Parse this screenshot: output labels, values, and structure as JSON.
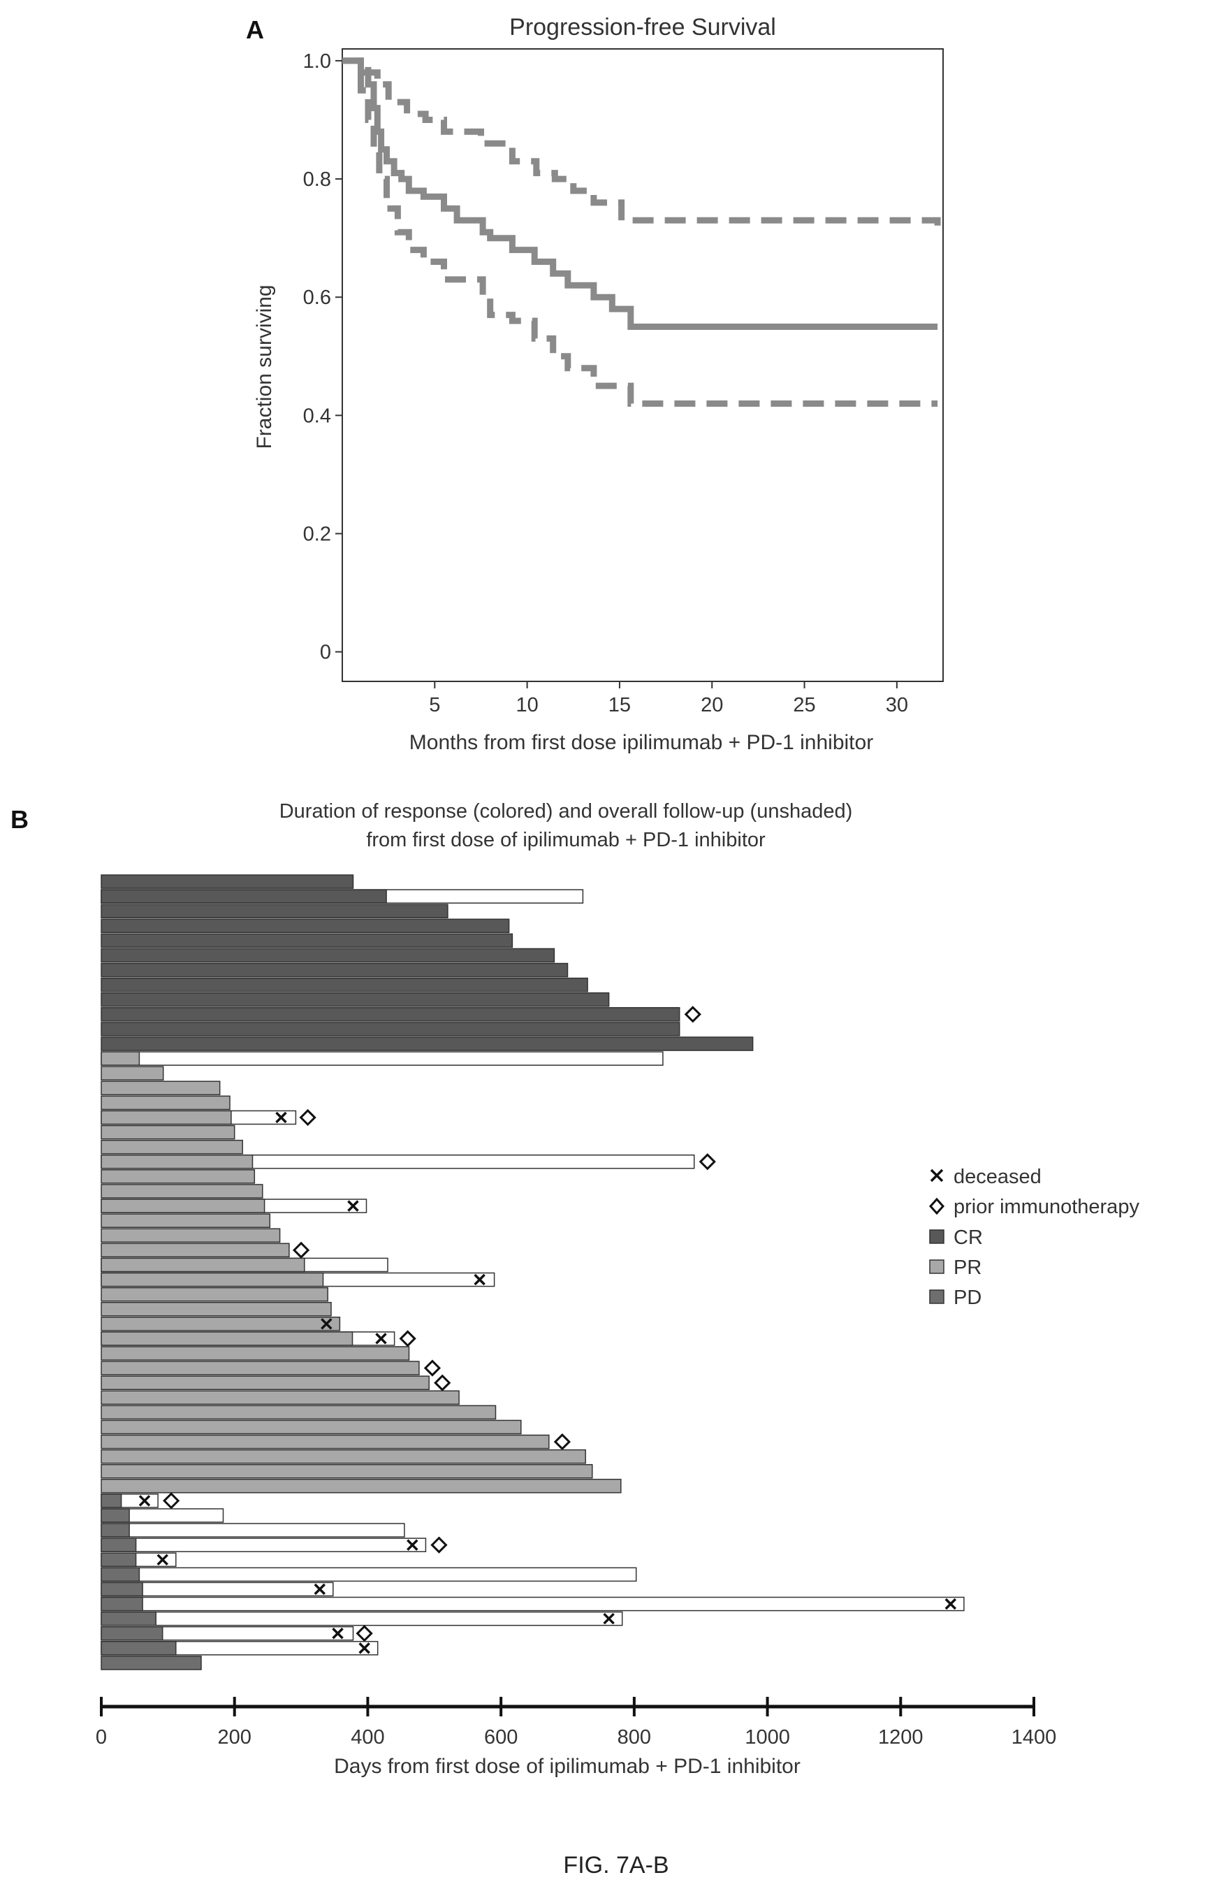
{
  "figure_caption": "FIG. 7A-B",
  "colors": {
    "survival_line": "#8a8a8a",
    "ci_line": "#8a8a8a",
    "CR": "#585858",
    "PR": "#a8a8a8",
    "PD": "#6e6e6e",
    "followup": "#ffffff",
    "outline": "#333333"
  },
  "chart_data": [
    {
      "panel": "A",
      "type": "line",
      "title": "Progression-free Survival",
      "xlabel": "Months from first dose ipilimumab + PD-1 inhibitor",
      "ylabel": "Fraction surviving",
      "xlim": [
        0,
        32.5
      ],
      "ylim": [
        -0.05,
        1.02
      ],
      "xticks": [
        5,
        10,
        15,
        20,
        25,
        30
      ],
      "xtick_labels": [
        "5",
        "10",
        "15",
        "20",
        "25",
        "30"
      ],
      "yticks": [
        0,
        0.2,
        0.4,
        0.6,
        0.8,
        1.0
      ],
      "ytick_labels": [
        "0",
        "0.2",
        "0.4",
        "0.6",
        "0.8",
        "1.0"
      ],
      "grid": false,
      "series": [
        {
          "style": "solid",
          "x": [
            0,
            1.0,
            1.4,
            1.7,
            1.9,
            2.1,
            2.4,
            2.8,
            3.2,
            3.6,
            4.4,
            5.5,
            6.2,
            7.6,
            8.0,
            9.2,
            10.4,
            11.4,
            12.2,
            13.6,
            14.6,
            15.6,
            32.2
          ],
          "y": [
            1.0,
            0.98,
            0.96,
            0.92,
            0.88,
            0.85,
            0.83,
            0.81,
            0.8,
            0.78,
            0.77,
            0.75,
            0.73,
            0.71,
            0.7,
            0.68,
            0.66,
            0.64,
            0.62,
            0.6,
            0.58,
            0.55,
            0.55
          ]
        },
        {
          "style": "dashed",
          "x": [
            0,
            1.0,
            1.4,
            1.9,
            2.5,
            3.5,
            4.5,
            5.5,
            7.5,
            9.2,
            10.5,
            11.5,
            12.5,
            13.6,
            15.1,
            32.2
          ],
          "y": [
            1.0,
            1.0,
            0.98,
            0.96,
            0.93,
            0.91,
            0.9,
            0.88,
            0.86,
            0.83,
            0.81,
            0.8,
            0.78,
            0.76,
            0.73,
            0.72
          ]
        },
        {
          "style": "dashed",
          "x": [
            0,
            1.0,
            1.4,
            1.7,
            2.0,
            2.4,
            3.0,
            3.6,
            4.4,
            5.5,
            7.6,
            8.0,
            9.2,
            10.4,
            11.4,
            12.2,
            13.6,
            15.6,
            32.2
          ],
          "y": [
            1.0,
            0.95,
            0.9,
            0.85,
            0.8,
            0.75,
            0.71,
            0.68,
            0.66,
            0.63,
            0.6,
            0.57,
            0.56,
            0.53,
            0.5,
            0.48,
            0.45,
            0.42,
            0.42
          ]
        }
      ]
    },
    {
      "panel": "B",
      "type": "bar",
      "orientation": "horizontal",
      "title": [
        "Duration of response (colored) and overall follow-up (unshaded)",
        "from first dose of ipilimumab + PD-1 inhibitor"
      ],
      "xlabel": "Days from first dose of ipilimumab + PD-1 inhibitor",
      "xlim": [
        0,
        1400
      ],
      "xticks": [
        0,
        200,
        400,
        600,
        800,
        1000,
        1200,
        1400
      ],
      "xtick_labels": [
        "0",
        "200",
        "400",
        "600",
        "800",
        "1000",
        "1200",
        "1400"
      ],
      "legend": {
        "position": "right",
        "items": [
          {
            "symbol": "x",
            "label": "deceased"
          },
          {
            "symbol": "diamond",
            "label": "prior immunotherapy"
          },
          {
            "symbol": "CR",
            "label": "CR"
          },
          {
            "symbol": "PR",
            "label": "PR"
          },
          {
            "symbol": "PD",
            "label": "PD"
          }
        ]
      },
      "patients": [
        {
          "group": "CR",
          "response": 378,
          "followup": 378
        },
        {
          "group": "CR",
          "response": 428,
          "followup": 723
        },
        {
          "group": "CR",
          "response": 520,
          "followup": 520
        },
        {
          "group": "CR",
          "response": 612,
          "followup": 612
        },
        {
          "group": "CR",
          "response": 617,
          "followup": 617
        },
        {
          "group": "CR",
          "response": 680,
          "followup": 680
        },
        {
          "group": "CR",
          "response": 700,
          "followup": 700
        },
        {
          "group": "CR",
          "response": 730,
          "followup": 730
        },
        {
          "group": "CR",
          "response": 762,
          "followup": 762
        },
        {
          "group": "CR",
          "response": 868,
          "followup": 868,
          "prior_immunotherapy": 888
        },
        {
          "group": "CR",
          "response": 868,
          "followup": 868
        },
        {
          "group": "CR",
          "response": 978,
          "followup": 978
        },
        {
          "group": "PR",
          "response": 57,
          "followup": 843
        },
        {
          "group": "PR",
          "response": 93,
          "followup": 93
        },
        {
          "group": "PR",
          "response": 178,
          "followup": 178
        },
        {
          "group": "PR",
          "response": 193,
          "followup": 193
        },
        {
          "group": "PR",
          "response": 195,
          "followup": 292,
          "deceased": 270,
          "prior_immunotherapy": 310
        },
        {
          "group": "PR",
          "response": 200,
          "followup": 200
        },
        {
          "group": "PR",
          "response": 212,
          "followup": 212
        },
        {
          "group": "PR",
          "response": 227,
          "followup": 890,
          "prior_immunotherapy": 910
        },
        {
          "group": "PR",
          "response": 230,
          "followup": 230
        },
        {
          "group": "PR",
          "response": 242,
          "followup": 242
        },
        {
          "group": "PR",
          "response": 245,
          "followup": 398,
          "deceased": 378
        },
        {
          "group": "PR",
          "response": 253,
          "followup": 253
        },
        {
          "group": "PR",
          "response": 268,
          "followup": 268
        },
        {
          "group": "PR",
          "response": 282,
          "followup": 282,
          "prior_immunotherapy": 300
        },
        {
          "group": "PR",
          "response": 305,
          "followup": 430
        },
        {
          "group": "PR",
          "response": 333,
          "followup": 590,
          "deceased": 568
        },
        {
          "group": "PR",
          "response": 340,
          "followup": 340
        },
        {
          "group": "PR",
          "response": 345,
          "followup": 345
        },
        {
          "group": "PR",
          "response": 358,
          "followup": 358,
          "deceased": 338
        },
        {
          "group": "PR",
          "response": 377,
          "followup": 440,
          "deceased": 420,
          "prior_immunotherapy": 460
        },
        {
          "group": "PR",
          "response": 462,
          "followup": 462
        },
        {
          "group": "PR",
          "response": 477,
          "followup": 477,
          "prior_immunotherapy": 497
        },
        {
          "group": "PR",
          "response": 492,
          "followup": 492,
          "prior_immunotherapy": 512
        },
        {
          "group": "PR",
          "response": 537,
          "followup": 537
        },
        {
          "group": "PR",
          "response": 592,
          "followup": 592
        },
        {
          "group": "PR",
          "response": 630,
          "followup": 630
        },
        {
          "group": "PR",
          "response": 672,
          "followup": 672,
          "prior_immunotherapy": 692
        },
        {
          "group": "PR",
          "response": 727,
          "followup": 727
        },
        {
          "group": "PR",
          "response": 737,
          "followup": 737
        },
        {
          "group": "PR",
          "response": 780,
          "followup": 780
        },
        {
          "group": "PD",
          "response": 30,
          "followup": 85,
          "deceased": 65,
          "prior_immunotherapy": 105
        },
        {
          "group": "PD",
          "response": 42,
          "followup": 183
        },
        {
          "group": "PD",
          "response": 42,
          "followup": 455
        },
        {
          "group": "PD",
          "response": 52,
          "followup": 487,
          "deceased": 467,
          "prior_immunotherapy": 507
        },
        {
          "group": "PD",
          "response": 52,
          "followup": 112,
          "deceased": 92
        },
        {
          "group": "PD",
          "response": 57,
          "followup": 803
        },
        {
          "group": "PD",
          "response": 62,
          "followup": 348,
          "deceased": 328
        },
        {
          "group": "PD",
          "response": 62,
          "followup": 1295,
          "deceased": 1275
        },
        {
          "group": "PD",
          "response": 82,
          "followup": 782,
          "deceased": 762
        },
        {
          "group": "PD",
          "response": 92,
          "followup": 378,
          "deceased": 355,
          "prior_immunotherapy": 395
        },
        {
          "group": "PD",
          "response": 112,
          "followup": 415,
          "deceased": 395
        },
        {
          "group": "PD",
          "response": 150,
          "followup": 150
        }
      ]
    }
  ]
}
